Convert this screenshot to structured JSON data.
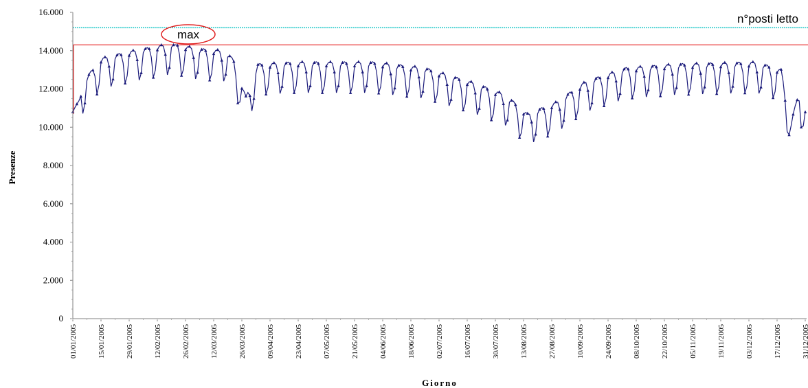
{
  "chart_data": {
    "type": "line",
    "xlabel": "Giorno",
    "ylabel": "Presenze",
    "ylim": [
      0,
      16000
    ],
    "y_ticks": [
      {
        "value": 0,
        "label": "0"
      },
      {
        "value": 2000,
        "label": "2.000"
      },
      {
        "value": 4000,
        "label": "4.000"
      },
      {
        "value": 6000,
        "label": "6.000"
      },
      {
        "value": 8000,
        "label": "8.000"
      },
      {
        "value": 10000,
        "label": "10.000"
      },
      {
        "value": 12000,
        "label": "12.000"
      },
      {
        "value": 14000,
        "label": "14.000"
      },
      {
        "value": 16000,
        "label": "16.000"
      }
    ],
    "x_ticks": [
      {
        "day": 0,
        "label": "01/01/2005"
      },
      {
        "day": 14,
        "label": "15/01/2005"
      },
      {
        "day": 28,
        "label": "29/01/2005"
      },
      {
        "day": 42,
        "label": "12/02/2005"
      },
      {
        "day": 56,
        "label": "26/02/2005"
      },
      {
        "day": 70,
        "label": "12/03/2005"
      },
      {
        "day": 84,
        "label": "26/03/2005"
      },
      {
        "day": 98,
        "label": "09/04/2005"
      },
      {
        "day": 112,
        "label": "23/04/2005"
      },
      {
        "day": 126,
        "label": "07/05/2005"
      },
      {
        "day": 140,
        "label": "21/05/2005"
      },
      {
        "day": 154,
        "label": "04/06/2005"
      },
      {
        "day": 168,
        "label": "18/06/2005"
      },
      {
        "day": 182,
        "label": "02/07/2005"
      },
      {
        "day": 196,
        "label": "16/07/2005"
      },
      {
        "day": 210,
        "label": "30/07/2005"
      },
      {
        "day": 224,
        "label": "13/08/2005"
      },
      {
        "day": 238,
        "label": "27/08/2005"
      },
      {
        "day": 252,
        "label": "10/09/2005"
      },
      {
        "day": 266,
        "label": "24/09/2005"
      },
      {
        "day": 280,
        "label": "08/10/2005"
      },
      {
        "day": 294,
        "label": "22/10/2005"
      },
      {
        "day": 308,
        "label": "05/11/2005"
      },
      {
        "day": 322,
        "label": "19/11/2005"
      },
      {
        "day": 336,
        "label": "03/12/2005"
      },
      {
        "day": 350,
        "label": "17/12/2005"
      },
      {
        "day": 364,
        "label": "31/12/2005"
      }
    ],
    "x_range_days": [
      0,
      364
    ],
    "series": [
      {
        "color": "#1a1a7a",
        "marker": "triangle",
        "trend_points": [
          {
            "day": 0,
            "value": 10700
          },
          {
            "day": 6,
            "value": 11800
          },
          {
            "day": 14,
            "value": 12900
          },
          {
            "day": 30,
            "value": 13300
          },
          {
            "day": 50,
            "value": 13700
          },
          {
            "day": 62,
            "value": 13400
          },
          {
            "day": 76,
            "value": 13300
          },
          {
            "day": 80,
            "value": 12800
          },
          {
            "day": 86,
            "value": 10900
          },
          {
            "day": 92,
            "value": 12600
          },
          {
            "day": 110,
            "value": 12700
          },
          {
            "day": 150,
            "value": 12700
          },
          {
            "day": 175,
            "value": 12400
          },
          {
            "day": 200,
            "value": 11600
          },
          {
            "day": 215,
            "value": 11000
          },
          {
            "day": 226,
            "value": 10000
          },
          {
            "day": 240,
            "value": 10600
          },
          {
            "day": 255,
            "value": 11700
          },
          {
            "day": 275,
            "value": 12400
          },
          {
            "day": 300,
            "value": 12600
          },
          {
            "day": 340,
            "value": 12700
          },
          {
            "day": 352,
            "value": 12300
          },
          {
            "day": 357,
            "value": 9600
          },
          {
            "day": 361,
            "value": 11200
          },
          {
            "day": 364,
            "value": 10300
          }
        ],
        "weekly_amplitude": 900
      }
    ],
    "reference_lines": [
      {
        "label": "n°posti letto",
        "value": 15200,
        "color": "#33cccc"
      },
      {
        "label": "max",
        "value": 14300,
        "color": "#e83030"
      }
    ]
  }
}
